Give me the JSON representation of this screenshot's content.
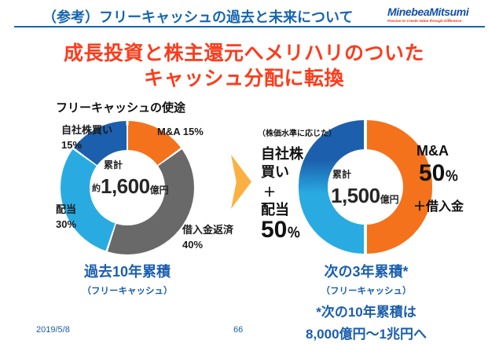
{
  "header": {
    "title": "（参考）フリーキャッシュの過去と未来について",
    "logo_text": "MinebeaMitsumi",
    "logo_tagline": "Passion to Create Value through Difference"
  },
  "headline": {
    "line1": "成長投資と株主還元へメリハリのついた",
    "line2": "キャッシュ分配に転換"
  },
  "section_label": "フリーキャッシュの使途",
  "past": {
    "center_label": "累計",
    "center_prefix": "約",
    "center_value": "1,600",
    "center_unit": "億円",
    "label_buyback_1": "自社株買い",
    "label_buyback_2": "15%",
    "label_ma": "M&A 15%",
    "label_dividend_1": "配当",
    "label_dividend_2": "30%",
    "label_debt_1": "借入金返済",
    "label_debt_2": "40%",
    "caption": "過去10年累積",
    "caption_sub": "（フリーキャッシュ）"
  },
  "future": {
    "note": "（株価水準に応じた）",
    "left_1": "自社株",
    "left_2": "買い",
    "left_3": "＋",
    "left_4": "配当",
    "left_pct": "50",
    "left_pct_sign": "％",
    "center_label": "累計",
    "center_value": "1,500",
    "center_unit": "億円",
    "right_1": "M&A",
    "right_pct": "50",
    "right_pct_sign": "％",
    "right_2": "＋借入金",
    "caption": "次の3年累積*",
    "caption_sub": "（フリーキャッシュ）",
    "footnote_1": "*次の10年累積は",
    "footnote_2": "8,000億円～1兆円へ"
  },
  "footer": {
    "date": "2019/5/8",
    "page": "66"
  },
  "colors": {
    "header_blue": "#1765AF",
    "caption_blue": "#1B5EAC",
    "headline_red": "#FB3C1C",
    "arrow_gold": "#FBB042",
    "logo_blue": "#1450A5",
    "logo_red": "#E8380D"
  },
  "chart_data": [
    {
      "type": "pie",
      "donut": true,
      "title": "フリーキャッシュの使途 — 過去10年累積（フリーキャッシュ）",
      "center_text": "累計 約1,600億円",
      "start": "top",
      "direction": "clockwise",
      "slices": [
        {
          "label": "M&A",
          "value": 15,
          "color": "#F4721C"
        },
        {
          "label": "借入金返済",
          "value": 40,
          "color": "#696969"
        },
        {
          "label": "配当",
          "value": 30,
          "color": "#29ABE2"
        },
        {
          "label": "自社株買い",
          "value": 15,
          "color": "#1C5FAC"
        }
      ]
    },
    {
      "type": "pie",
      "donut": true,
      "title": "次の3年累積（フリーキャッシュ）",
      "center_text": "累計 1,500億円",
      "slices": [
        {
          "label": "M&A ＋借入金",
          "value": 50,
          "color": "#F4721C"
        },
        {
          "label": "自社株買い＋配当（株価水準に応じた）",
          "value": 50,
          "gradient": [
            "#1C5FAC",
            "#29ABE2"
          ]
        }
      ],
      "footnote": "*次の10年累積は8,000億円～1兆円へ"
    }
  ]
}
